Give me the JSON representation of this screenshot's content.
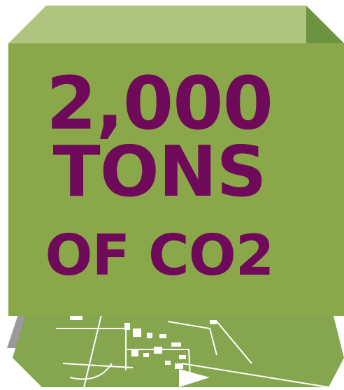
{
  "graphic": {
    "lines": [
      "2,000",
      "TONS",
      "OF CO2"
    ]
  },
  "colors": {
    "cube_front": "#8aa84a",
    "cube_top": "#aec47f",
    "cube_side": "#6e9441",
    "text": "#6f0a5b",
    "map_fill": "#85a64e",
    "map_shadow": "#6f6f6f",
    "map_lines": "#ffffff"
  },
  "icons": [
    "map-illustration",
    "cube-illustration"
  ]
}
